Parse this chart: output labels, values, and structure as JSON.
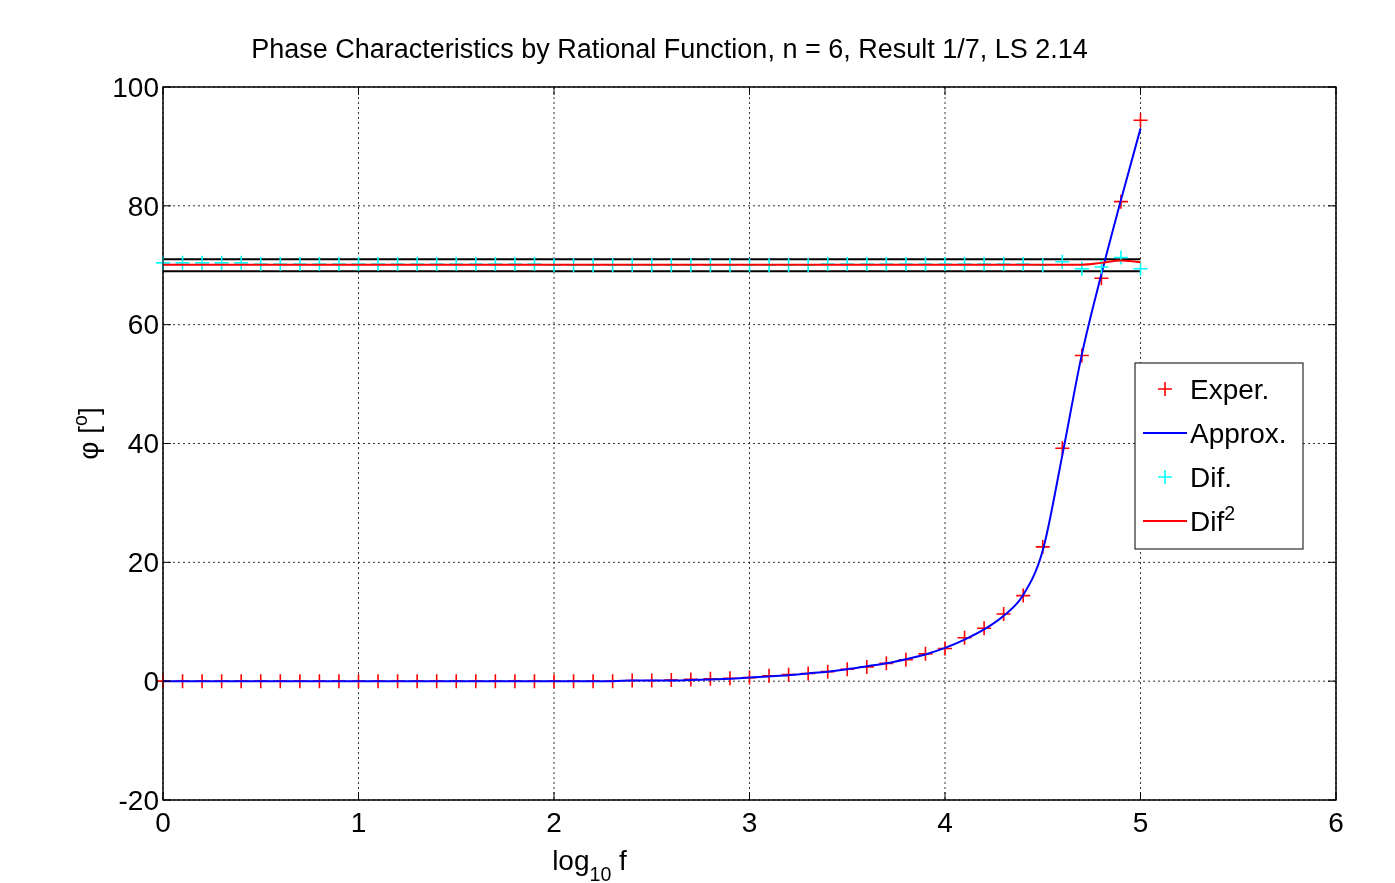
{
  "chart_data": {
    "type": "line",
    "title": "Phase Characteristics by Rational Function, n = 6, Result 1/7, LS 2.14",
    "xlabel": "log$_{10}$ f",
    "ylabel": "φ [$^{o}$]",
    "x": [
      0,
      0.1,
      0.2,
      0.3,
      0.4,
      0.5,
      0.6,
      0.7,
      0.8,
      0.9,
      1,
      1.1,
      1.2,
      1.3,
      1.4,
      1.5,
      1.6,
      1.7,
      1.8,
      1.9,
      2,
      2.1,
      2.2,
      2.3,
      2.4,
      2.5,
      2.6,
      2.7,
      2.8,
      2.9,
      3,
      3.1,
      3.2,
      3.3,
      3.4,
      3.5,
      3.6,
      3.7,
      3.8,
      3.9,
      4,
      4.1,
      4.2,
      4.3,
      4.4,
      4.5,
      4.6,
      4.7,
      4.8,
      4.9,
      5
    ],
    "xlim": [
      0,
      6
    ],
    "xticks": [
      0,
      1,
      2,
      3,
      4,
      5,
      6
    ],
    "ylim": [
      -20,
      100
    ],
    "yticks": [
      -20,
      0,
      20,
      40,
      60,
      80,
      100
    ],
    "grid": true,
    "legend": "right",
    "series": [
      {
        "name": "Exper.",
        "type": "scatter",
        "marker": "cross",
        "color": "#ff0000",
        "values": [
          0,
          0,
          0,
          0,
          0,
          0,
          0,
          0,
          0,
          0,
          0,
          0,
          0,
          0,
          0,
          0,
          0,
          0,
          0,
          0,
          0,
          0,
          0,
          0,
          0.1,
          0.1,
          0.2,
          0.3,
          0.4,
          0.5,
          0.6,
          0.9,
          1.1,
          1.3,
          1.6,
          2,
          2.4,
          3,
          3.6,
          4.6,
          5.5,
          7.3,
          8.9,
          11.3,
          14.4,
          22.6,
          39.2,
          54.8,
          67.8,
          80.7,
          94.4
        ]
      },
      {
        "name": "Approx.",
        "color": "#0000ff",
        "values": [
          0,
          0,
          0,
          0,
          0,
          0,
          0,
          0,
          0,
          0,
          0,
          0,
          0,
          0,
          0,
          0,
          0,
          0,
          0,
          0,
          0,
          0,
          0,
          0,
          0.1,
          0.1,
          0.1,
          0.2,
          0.3,
          0.4,
          0.6,
          0.8,
          1,
          1.3,
          1.6,
          2,
          2.5,
          3,
          3.7,
          4.5,
          5.6,
          7,
          8.7,
          11,
          14.5,
          22,
          38,
          55,
          68.5,
          81,
          93
        ]
      },
      {
        "name": "Dif.",
        "type": "scatter",
        "marker": "cross",
        "color": "#00ffff",
        "values": [
          70.4,
          70.4,
          70.4,
          70.4,
          70.4,
          70.2,
          70.2,
          70.2,
          70.2,
          70.2,
          70.2,
          70.2,
          70.2,
          70.2,
          70.2,
          70.2,
          70.2,
          70.2,
          70.2,
          70.2,
          70,
          70,
          70,
          70,
          70,
          70,
          70,
          70,
          70,
          70,
          70,
          70,
          70,
          70,
          70.2,
          70.2,
          70.2,
          70.2,
          70.2,
          70.2,
          70.2,
          70.2,
          70.2,
          70.2,
          70.2,
          70,
          70.6,
          69.4,
          69.7,
          71.3,
          69.4
        ]
      },
      {
        "name": "Dif$^{2}$",
        "color": "#ff0000",
        "values": [
          70.1,
          70.1,
          70.1,
          70.1,
          70.1,
          70.1,
          70.1,
          70.1,
          70.1,
          70.1,
          70.1,
          70.1,
          70.1,
          70.1,
          70.1,
          70.1,
          70.1,
          70.1,
          70.1,
          70.1,
          70.1,
          70.1,
          70.1,
          70.1,
          70.1,
          70.1,
          70.1,
          70.1,
          70.1,
          70.1,
          70.1,
          70.1,
          70.1,
          70.1,
          70.1,
          70.1,
          70.1,
          70.1,
          70.1,
          70.1,
          70.1,
          70.1,
          70.1,
          70.1,
          70.1,
          70.1,
          70.1,
          70.1,
          70.4,
          70.8,
          70.5
        ]
      }
    ],
    "ref_lines": [
      {
        "axis": "y",
        "value": 71,
        "color": "#000000"
      },
      {
        "axis": "y",
        "value": 69,
        "color": "#000000"
      }
    ]
  }
}
